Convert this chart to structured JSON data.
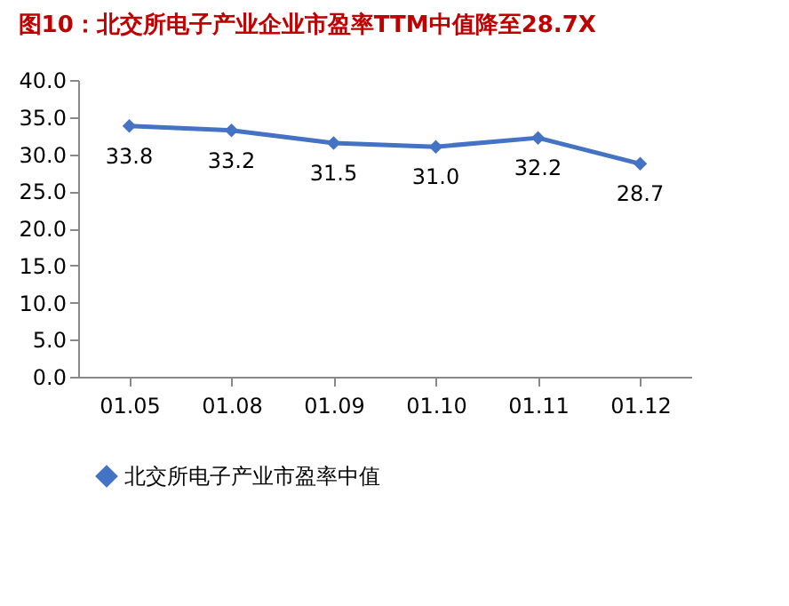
{
  "chart_data": {
    "type": "line",
    "title": "图10：北交所电子产业企业市盈率TTM中值降至28.7X",
    "categories": [
      "01.05",
      "01.08",
      "01.09",
      "01.10",
      "01.11",
      "01.12"
    ],
    "series": [
      {
        "name": "北交所电子产业市盈率中值",
        "color": "#4472c4",
        "values": [
          33.8,
          33.2,
          31.5,
          31.0,
          32.2,
          28.7
        ],
        "value_labels": [
          "33.8",
          "33.2",
          "31.5",
          "31.0",
          "32.2",
          "28.7"
        ]
      }
    ],
    "ylim": [
      0,
      40
    ],
    "yticks": [
      {
        "value": 0,
        "label": "0.0"
      },
      {
        "value": 5,
        "label": "5.0"
      },
      {
        "value": 10,
        "label": "10.0"
      },
      {
        "value": 15,
        "label": "15.0"
      },
      {
        "value": 20,
        "label": "20.0"
      },
      {
        "value": 25,
        "label": "25.0"
      },
      {
        "value": 30,
        "label": "30.0"
      },
      {
        "value": 35,
        "label": "35.0"
      },
      {
        "value": 40,
        "label": "40.0"
      }
    ],
    "grid": false,
    "legend": "bottom",
    "marker": "diamond",
    "line_style": "solid"
  }
}
